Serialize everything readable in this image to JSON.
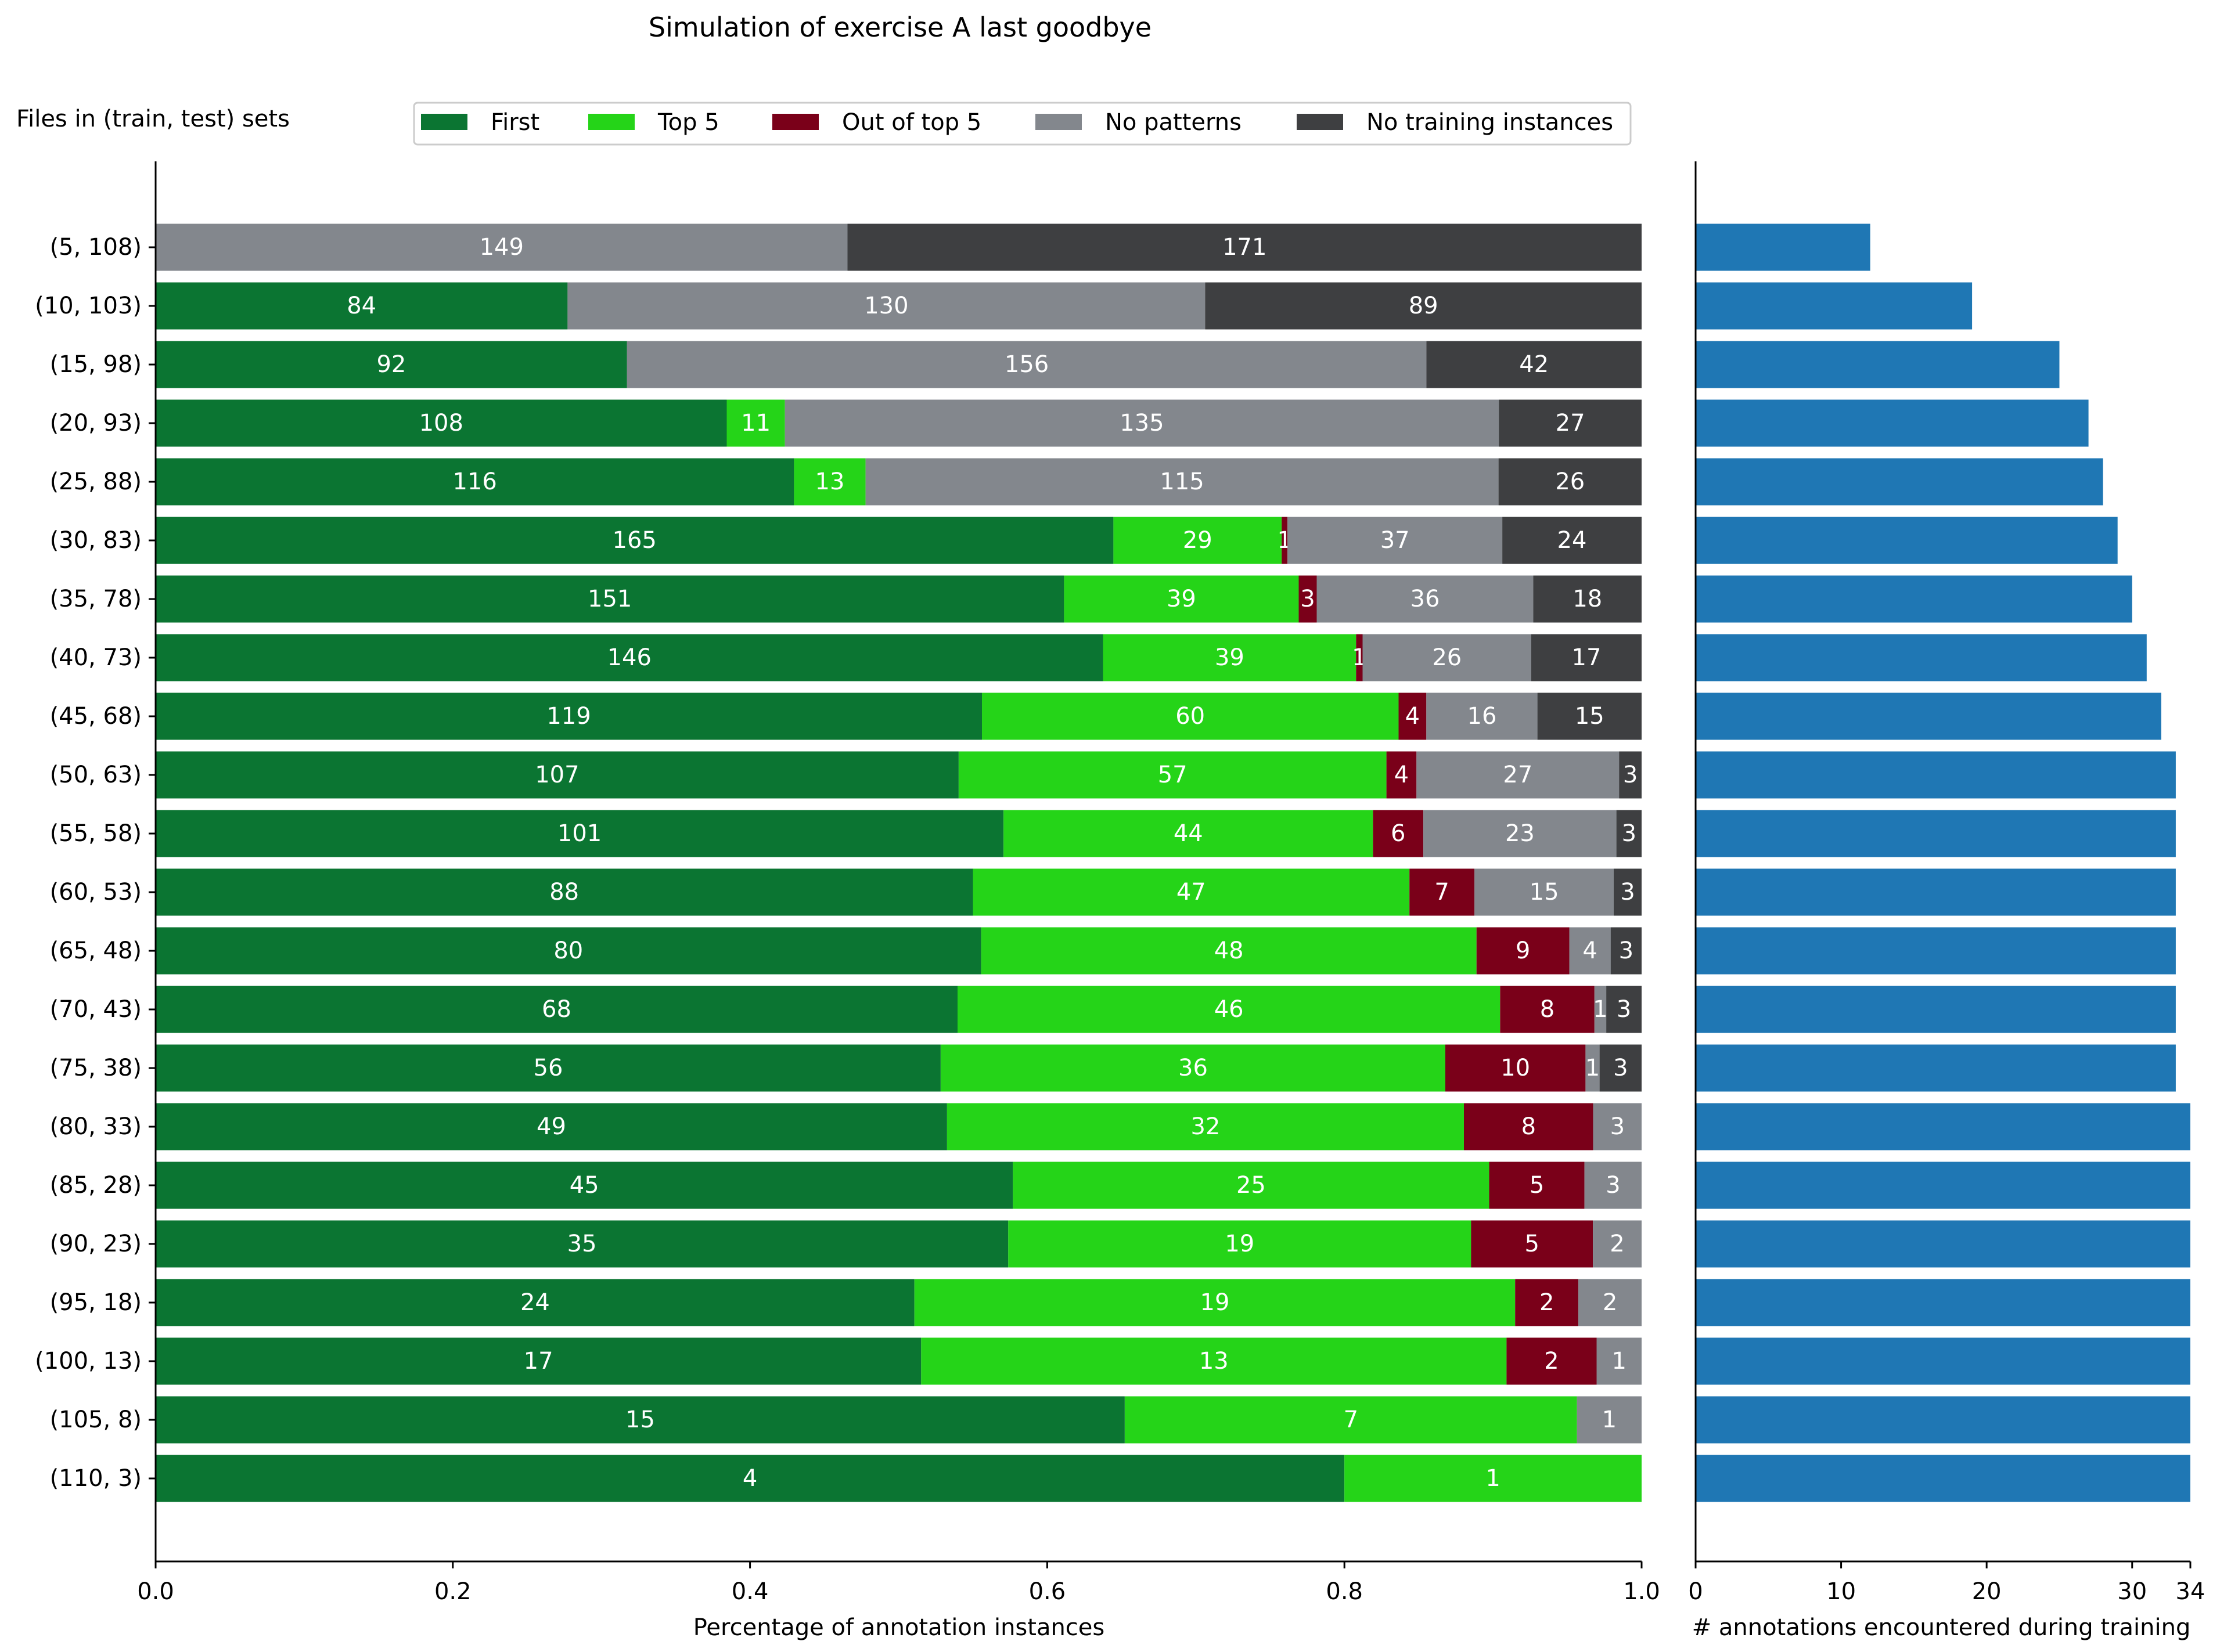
{
  "title": "Simulation of exercise A last goodbye",
  "ylabel_note": "Files in (train, test) sets",
  "colors": {
    "First": "#0b7532",
    "Top 5": "#25d418",
    "Out of top 5": "#7a0019",
    "No patterns": "#83878d",
    "No training instances": "#3e3f41",
    "count_bar": "#1f77b4"
  },
  "chart_data": [
    {
      "type": "bar",
      "orientation": "horizontal",
      "stacked": true,
      "normalized": true,
      "xlabel": "Percentage of annotation instances",
      "xlim": [
        0,
        1
      ],
      "xticks": [
        "0.0",
        "0.2",
        "0.4",
        "0.6",
        "0.8",
        "1.0"
      ],
      "legend": {
        "placement": "top",
        "entries": [
          "First",
          "Top 5",
          "Out of top 5",
          "No patterns",
          "No training instances"
        ]
      },
      "categories": [
        "(5, 108)",
        "(10, 103)",
        "(15, 98)",
        "(20, 93)",
        "(25, 88)",
        "(30, 83)",
        "(35, 78)",
        "(40, 73)",
        "(45, 68)",
        "(50, 63)",
        "(55, 58)",
        "(60, 53)",
        "(65, 48)",
        "(70, 43)",
        "(75, 38)",
        "(80, 33)",
        "(85, 28)",
        "(90, 23)",
        "(95, 18)",
        "(100, 13)",
        "(105, 8)",
        "(110, 3)"
      ],
      "series": [
        {
          "name": "First",
          "values": [
            0,
            84,
            92,
            108,
            116,
            165,
            151,
            146,
            119,
            107,
            101,
            88,
            80,
            68,
            56,
            49,
            45,
            35,
            24,
            17,
            15,
            4
          ]
        },
        {
          "name": "Top 5",
          "values": [
            0,
            0,
            0,
            11,
            13,
            29,
            39,
            39,
            60,
            57,
            44,
            47,
            48,
            46,
            36,
            32,
            25,
            19,
            19,
            13,
            7,
            1
          ]
        },
        {
          "name": "Out of top 5",
          "values": [
            0,
            0,
            0,
            0,
            0,
            1,
            3,
            1,
            4,
            4,
            6,
            7,
            9,
            8,
            10,
            8,
            5,
            5,
            2,
            2,
            0,
            0
          ]
        },
        {
          "name": "No patterns",
          "values": [
            149,
            130,
            156,
            135,
            115,
            37,
            36,
            26,
            16,
            27,
            23,
            15,
            4,
            1,
            1,
            3,
            3,
            2,
            2,
            1,
            1,
            0
          ]
        },
        {
          "name": "No training instances",
          "values": [
            171,
            89,
            42,
            27,
            26,
            24,
            18,
            17,
            15,
            3,
            3,
            3,
            3,
            3,
            3,
            0,
            0,
            0,
            0,
            0,
            0,
            0
          ]
        }
      ]
    },
    {
      "type": "bar",
      "orientation": "horizontal",
      "xlabel": "# annotations encountered during training",
      "xlim": [
        0,
        34
      ],
      "xticks": [
        "0",
        "10",
        "20",
        "30",
        "34"
      ],
      "categories": [
        "(5, 108)",
        "(10, 103)",
        "(15, 98)",
        "(20, 93)",
        "(25, 88)",
        "(30, 83)",
        "(35, 78)",
        "(40, 73)",
        "(45, 68)",
        "(50, 63)",
        "(55, 58)",
        "(60, 53)",
        "(65, 48)",
        "(70, 43)",
        "(75, 38)",
        "(80, 33)",
        "(85, 28)",
        "(90, 23)",
        "(95, 18)",
        "(100, 13)",
        "(105, 8)",
        "(110, 3)"
      ],
      "values": [
        12,
        19,
        25,
        27,
        28,
        29,
        30,
        31,
        32,
        33,
        33,
        33,
        33,
        33,
        33,
        34,
        34,
        34,
        34,
        34,
        34,
        34
      ]
    }
  ]
}
